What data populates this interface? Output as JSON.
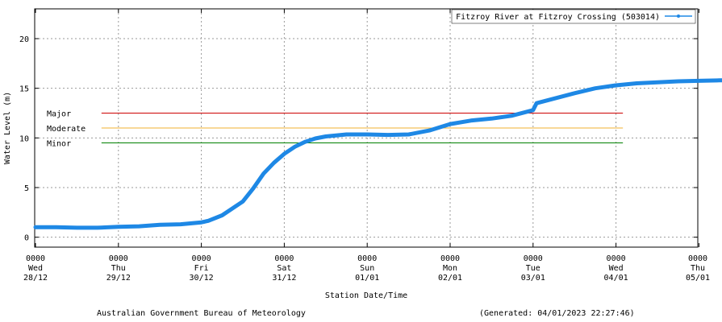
{
  "chart_data": {
    "type": "line",
    "ylabel": "Water Level (m)",
    "xlabel": "Station Date/Time",
    "ylim": [
      -1,
      23
    ],
    "yticks": [
      0,
      5,
      10,
      15,
      20
    ],
    "grid": true,
    "legend_position": "top-right",
    "x_ticks": [
      {
        "time": "0000",
        "day": "Wed",
        "date": "28/12"
      },
      {
        "time": "0000",
        "day": "Thu",
        "date": "29/12"
      },
      {
        "time": "0000",
        "day": "Fri",
        "date": "30/12"
      },
      {
        "time": "0000",
        "day": "Sat",
        "date": "31/12"
      },
      {
        "time": "0000",
        "day": "Sun",
        "date": "01/01"
      },
      {
        "time": "0000",
        "day": "Mon",
        "date": "02/01"
      },
      {
        "time": "0000",
        "day": "Tue",
        "date": "03/01"
      },
      {
        "time": "0000",
        "day": "Wed",
        "date": "04/01"
      },
      {
        "time": "0000",
        "day": "Thu",
        "date": "05/01"
      }
    ],
    "thresholds": [
      {
        "label": "Major",
        "value": 12.5,
        "color": "#cc0000"
      },
      {
        "label": "Moderate",
        "value": 11.0,
        "color": "#f0b030"
      },
      {
        "label": "Minor",
        "value": 9.5,
        "color": "#008000"
      }
    ],
    "threshold_x_range": [
      "29/12 00:00",
      "04/01 02:00"
    ],
    "series": [
      {
        "name": "Fitzroy River at Fitzroy Crossing (503014)",
        "color": "#1e88e5",
        "points": [
          [
            "28/12 00:00",
            1.0
          ],
          [
            "28/12 06:00",
            1.0
          ],
          [
            "28/12 12:00",
            0.95
          ],
          [
            "28/12 18:00",
            0.95
          ],
          [
            "29/12 00:00",
            1.05
          ],
          [
            "29/12 06:00",
            1.1
          ],
          [
            "29/12 12:00",
            1.25
          ],
          [
            "29/12 18:00",
            1.3
          ],
          [
            "30/12 00:00",
            1.5
          ],
          [
            "30/12 02:00",
            1.65
          ],
          [
            "30/12 06:00",
            2.2
          ],
          [
            "30/12 09:00",
            2.9
          ],
          [
            "30/12 12:00",
            3.6
          ],
          [
            "30/12 15:00",
            4.9
          ],
          [
            "30/12 18:00",
            6.4
          ],
          [
            "30/12 21:00",
            7.5
          ],
          [
            "31/12 00:00",
            8.4
          ],
          [
            "31/12 03:00",
            9.1
          ],
          [
            "31/12 06:00",
            9.6
          ],
          [
            "31/12 09:00",
            9.95
          ],
          [
            "31/12 12:00",
            10.15
          ],
          [
            "31/12 18:00",
            10.35
          ],
          [
            "01/01 00:00",
            10.35
          ],
          [
            "01/01 06:00",
            10.3
          ],
          [
            "01/01 12:00",
            10.35
          ],
          [
            "01/01 18:00",
            10.75
          ],
          [
            "02/01 00:00",
            11.4
          ],
          [
            "02/01 06:00",
            11.75
          ],
          [
            "02/01 12:00",
            11.95
          ],
          [
            "02/01 18:00",
            12.25
          ],
          [
            "03/01 00:00",
            12.8
          ],
          [
            "03/01 01:00",
            13.5
          ],
          [
            "03/01 06:00",
            13.95
          ],
          [
            "03/01 12:00",
            14.5
          ],
          [
            "03/01 18:00",
            15.0
          ],
          [
            "04/01 00:00",
            15.3
          ],
          [
            "04/01 06:00",
            15.5
          ],
          [
            "04/01 12:00",
            15.6
          ],
          [
            "04/01 18:00",
            15.7
          ],
          [
            "05/01 00:00",
            15.75
          ],
          [
            "05/01 06:00",
            15.8
          ],
          [
            "05/01 12:00",
            15.8
          ],
          [
            "05/01 18:00",
            15.65
          ],
          [
            "05/01 22:00",
            15.6
          ]
        ]
      }
    ]
  },
  "footer": {
    "left": "Australian Government Bureau of Meteorology",
    "right": "(Generated: 04/01/2023 22:27:46)"
  }
}
